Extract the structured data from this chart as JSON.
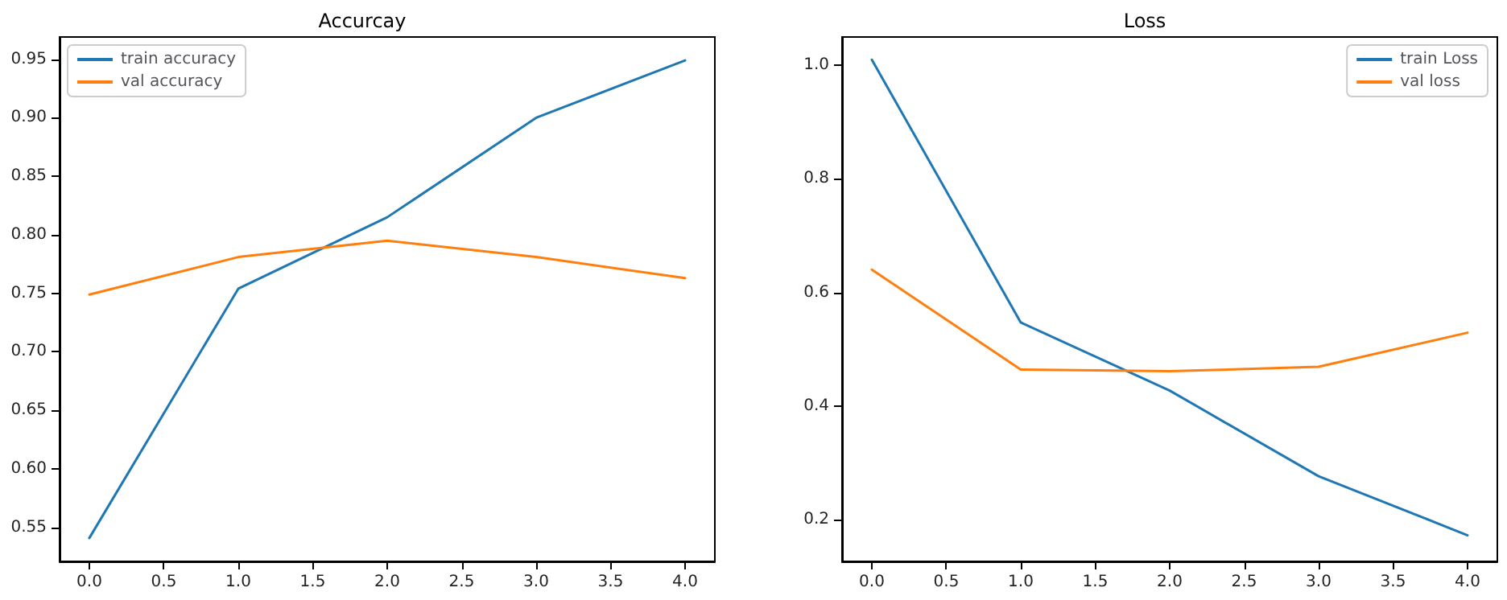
{
  "chart_data": [
    {
      "type": "line",
      "title": "Accurcay",
      "x": [
        0,
        1,
        2,
        3,
        4
      ],
      "series": [
        {
          "name": "train accuracy",
          "color": "#1f77b4",
          "values": [
            0.541,
            0.754,
            0.815,
            0.9,
            0.949
          ]
        },
        {
          "name": "val accuracy",
          "color": "#ff7f0e",
          "values": [
            0.749,
            0.781,
            0.795,
            0.781,
            0.763
          ]
        }
      ],
      "xlim": [
        -0.2,
        4.2
      ],
      "ylim": [
        0.521,
        0.969
      ],
      "xticks": [
        {
          "value": 0,
          "label": "0.0"
        },
        {
          "value": 0.5,
          "label": "0.5"
        },
        {
          "value": 1,
          "label": "1.0"
        },
        {
          "value": 1.5,
          "label": "1.5"
        },
        {
          "value": 2,
          "label": "2.0"
        },
        {
          "value": 2.5,
          "label": "2.5"
        },
        {
          "value": 3,
          "label": "3.0"
        },
        {
          "value": 3.5,
          "label": "3.5"
        },
        {
          "value": 4,
          "label": "4.0"
        }
      ],
      "yticks": [
        0.55,
        {
          "value": 0.6,
          "label": "0.60"
        },
        0.65,
        {
          "value": 0.7,
          "label": "0.70"
        },
        0.75,
        {
          "value": 0.8,
          "label": "0.80"
        },
        0.85,
        {
          "value": 0.9,
          "label": "0.90"
        },
        0.95
      ],
      "legend": "top left",
      "grid": false,
      "marker": "none",
      "line_style": "solid"
    },
    {
      "type": "line",
      "title": "Loss",
      "x": [
        0,
        1,
        2,
        3,
        4
      ],
      "series": [
        {
          "name": "train Loss",
          "color": "#1f77b4",
          "values": [
            1.01,
            0.547,
            0.427,
            0.276,
            0.172
          ]
        },
        {
          "name": "val loss",
          "color": "#ff7f0e",
          "values": [
            0.64,
            0.464,
            0.461,
            0.469,
            0.529
          ]
        }
      ],
      "xlim": [
        -0.2,
        4.2
      ],
      "ylim": [
        0.126,
        1.05
      ],
      "xticks": [
        {
          "value": 0,
          "label": "0.0"
        },
        {
          "value": 0.5,
          "label": "0.5"
        },
        {
          "value": 1,
          "label": "1.0"
        },
        {
          "value": 1.5,
          "label": "1.5"
        },
        {
          "value": 2,
          "label": "2.0"
        },
        {
          "value": 2.5,
          "label": "2.5"
        },
        {
          "value": 3,
          "label": "3.0"
        },
        {
          "value": 3.5,
          "label": "3.5"
        },
        {
          "value": 4,
          "label": "4.0"
        }
      ],
      "yticks": [
        0.2,
        0.4,
        0.6,
        0.8,
        {
          "value": 1,
          "label": "1.0"
        }
      ],
      "legend": "top right",
      "grid": false,
      "marker": "none",
      "line_style": "solid"
    }
  ]
}
